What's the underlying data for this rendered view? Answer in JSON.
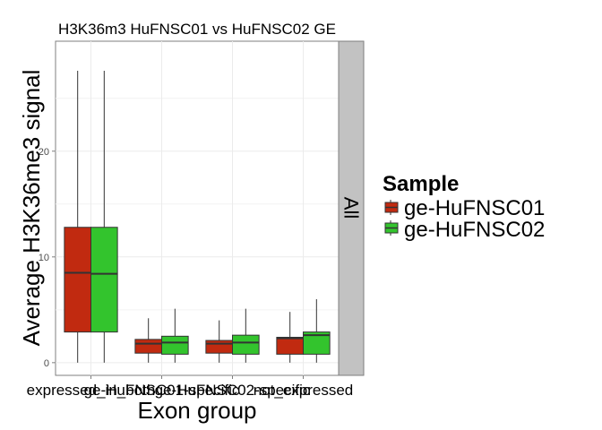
{
  "chart_data": {
    "type": "box",
    "title": "H3K36m3 HuFNSC01 vs HuFNSC02 GE",
    "xlabel": "Exon group",
    "ylabel": "Average H3K36me3 signal",
    "ylim": [
      -1.2,
      30.4
    ],
    "yticks": [
      0,
      10,
      20
    ],
    "facet_label": "All",
    "grid": true,
    "legend_position": "right",
    "legend_title": "Sample",
    "categories": [
      "expressed_in_both",
      "ge-HuFNSC01-specific",
      "ge-HuFNSC02-specific",
      "not_expressed"
    ],
    "series": [
      {
        "name": "ge-HuFNSC01",
        "color": "#c12a10",
        "boxes": [
          {
            "min": 0.0,
            "q1": 2.9,
            "median": 8.5,
            "q3": 12.8,
            "max": 27.6
          },
          {
            "min": 0.0,
            "q1": 0.9,
            "median": 1.8,
            "q3": 2.2,
            "max": 4.2
          },
          {
            "min": 0.0,
            "q1": 0.9,
            "median": 1.8,
            "q3": 2.1,
            "max": 4.0
          },
          {
            "min": 0.0,
            "q1": 0.8,
            "median": 2.3,
            "q3": 2.4,
            "max": 4.8
          }
        ]
      },
      {
        "name": "ge-HuFNSC02",
        "color": "#33c42d",
        "boxes": [
          {
            "min": 0.0,
            "q1": 2.9,
            "median": 8.4,
            "q3": 12.8,
            "max": 27.6
          },
          {
            "min": 0.0,
            "q1": 0.8,
            "median": 1.9,
            "q3": 2.5,
            "max": 5.1
          },
          {
            "min": 0.0,
            "q1": 0.8,
            "median": 1.9,
            "q3": 2.6,
            "max": 5.1
          },
          {
            "min": 0.0,
            "q1": 0.8,
            "median": 2.6,
            "q3": 2.9,
            "max": 6.0
          }
        ]
      }
    ]
  }
}
